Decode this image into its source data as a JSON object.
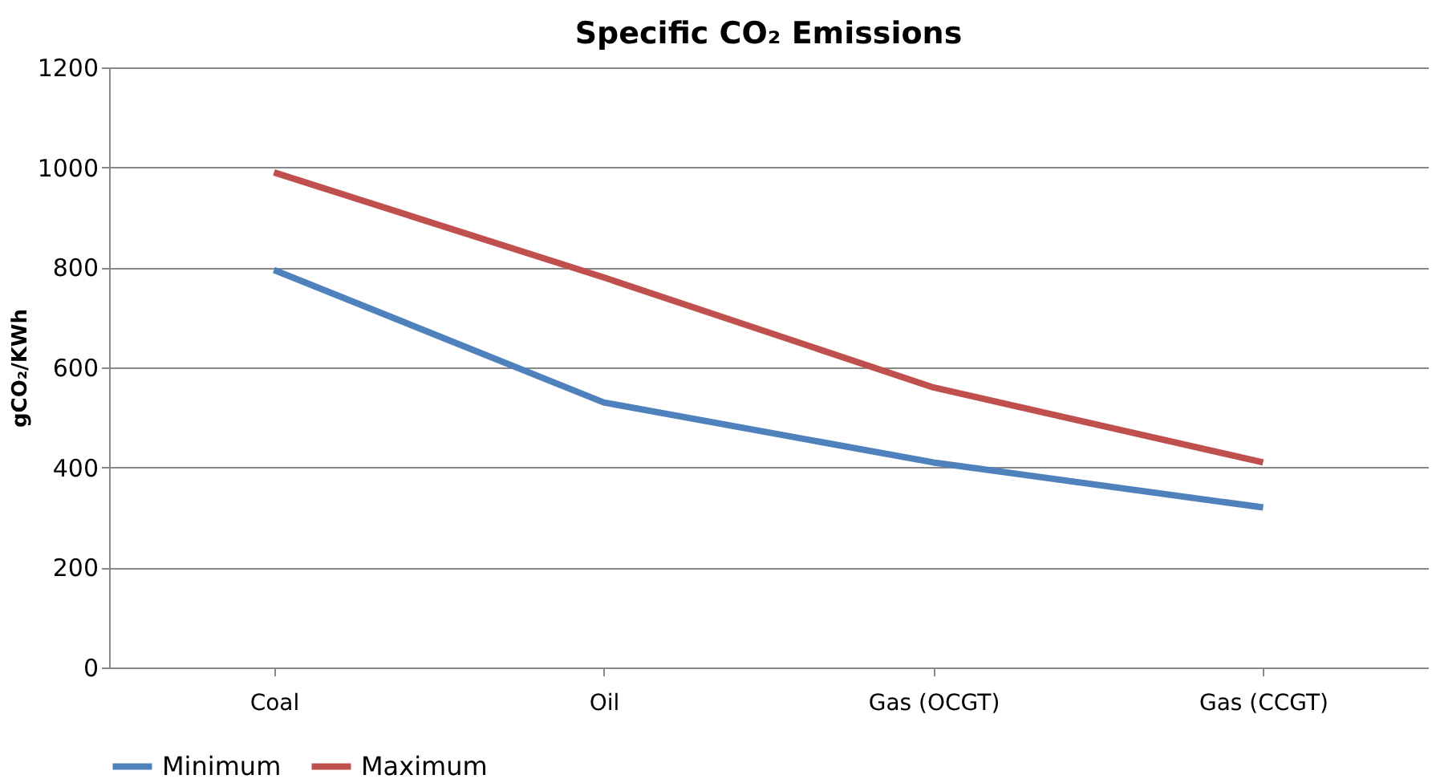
{
  "chart_data": {
    "type": "line",
    "title": "Specific CO₂ Emissions",
    "ylabel": "gCO₂/KWh",
    "categories": [
      "Coal",
      "Oil",
      "Gas (OCGT)",
      "Gas (CCGT)"
    ],
    "series": [
      {
        "name": "Minimum",
        "color": "#4f81bd",
        "values": [
          795,
          530,
          410,
          320
        ]
      },
      {
        "name": "Maximum",
        "color": "#c0504d",
        "values": [
          990,
          780,
          560,
          410
        ]
      }
    ],
    "ylim": [
      0,
      1200
    ],
    "yticks": [
      0,
      200,
      400,
      600,
      800,
      1000,
      1200
    ],
    "grid": "y",
    "legend": "bottom",
    "marker": "none",
    "line_style": "solid"
  }
}
